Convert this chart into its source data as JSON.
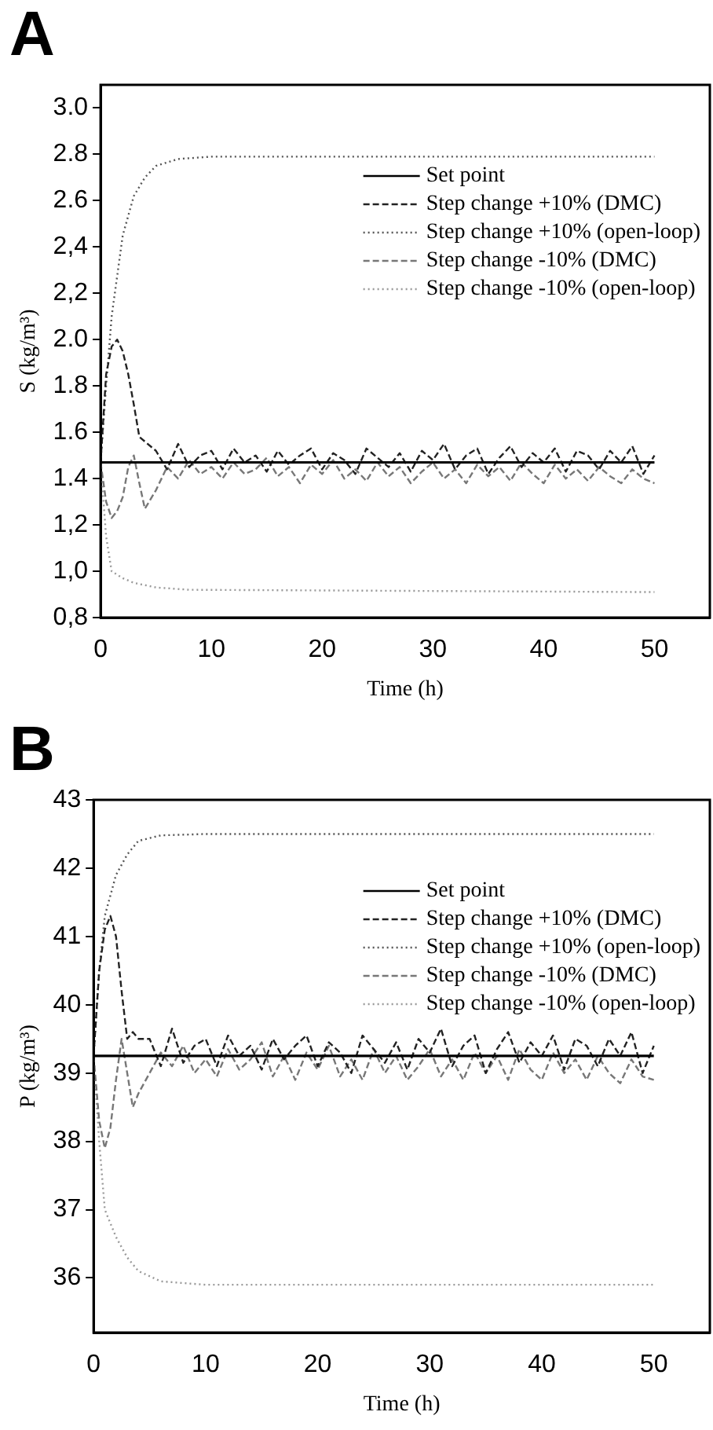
{
  "chart_data": [
    {
      "type": "line",
      "title": "A",
      "xlabel": "Time (h)",
      "ylabel": "S (kg/m³)",
      "xlim": [
        0,
        55
      ],
      "xticks": [
        0,
        10,
        20,
        30,
        40,
        50
      ],
      "ylim": [
        0.8,
        3.1
      ],
      "yticks": [
        {
          "value": 0.8,
          "label": "0,8"
        },
        {
          "value": 1.0,
          "label": "1,0"
        },
        {
          "value": 1.2,
          "label": "1,2"
        },
        {
          "value": 1.4,
          "label": "1.4"
        },
        {
          "value": 1.6,
          "label": "1.6"
        },
        {
          "value": 1.8,
          "label": "1.8"
        },
        {
          "value": 2.0,
          "label": "2.0"
        },
        {
          "value": 2.2,
          "label": "2,2"
        },
        {
          "value": 2.4,
          "label": "2,4"
        },
        {
          "value": 2.6,
          "label": "2.6"
        },
        {
          "value": 2.8,
          "label": "2.8"
        },
        {
          "value": 3.0,
          "label": "3.0"
        }
      ],
      "grid": false,
      "legend": "top right",
      "marker": "none",
      "series": [
        {
          "name": "Set point",
          "color": "#000000",
          "line_style": "solid",
          "x": [
            0,
            50
          ],
          "values": [
            1.47,
            1.47
          ]
        },
        {
          "name": "Step change +10% (DMC)",
          "color": "#222222",
          "line_style": "dashed",
          "x": [
            0,
            0.5,
            1,
            1.5,
            2,
            2.5,
            3,
            3.5,
            4,
            5,
            6,
            7,
            8,
            9,
            10,
            11,
            12,
            13,
            14,
            15,
            16,
            17,
            18,
            19,
            20,
            21,
            22,
            23,
            24,
            25,
            26,
            27,
            28,
            29,
            30,
            31,
            32,
            33,
            34,
            35,
            36,
            37,
            38,
            39,
            40,
            41,
            42,
            43,
            44,
            45,
            46,
            47,
            48,
            49,
            50
          ],
          "values": [
            1.47,
            1.85,
            1.97,
            2.0,
            1.95,
            1.85,
            1.72,
            1.58,
            1.56,
            1.52,
            1.44,
            1.55,
            1.45,
            1.5,
            1.52,
            1.44,
            1.53,
            1.47,
            1.5,
            1.43,
            1.52,
            1.46,
            1.5,
            1.53,
            1.44,
            1.51,
            1.48,
            1.42,
            1.53,
            1.49,
            1.45,
            1.51,
            1.43,
            1.52,
            1.48,
            1.55,
            1.44,
            1.5,
            1.53,
            1.42,
            1.49,
            1.54,
            1.45,
            1.51,
            1.47,
            1.53,
            1.43,
            1.52,
            1.5,
            1.44,
            1.52,
            1.47,
            1.54,
            1.42,
            1.5
          ]
        },
        {
          "name": "Step change +10% (open-loop)",
          "color": "#555555",
          "line_style": "dotted",
          "x": [
            0,
            0.5,
            1,
            2,
            3,
            4,
            5,
            7,
            10,
            50
          ],
          "values": [
            1.47,
            1.8,
            2.1,
            2.45,
            2.62,
            2.7,
            2.75,
            2.78,
            2.79,
            2.79
          ]
        },
        {
          "name": "Step change -10% (DMC)",
          "color": "#777777",
          "line_style": "dashed",
          "x": [
            0,
            0.5,
            1,
            1.5,
            2,
            2.5,
            3,
            3.5,
            4,
            5,
            6,
            7,
            8,
            9,
            10,
            11,
            12,
            13,
            14,
            15,
            16,
            17,
            18,
            19,
            20,
            21,
            22,
            23,
            24,
            25,
            26,
            27,
            28,
            29,
            30,
            31,
            32,
            33,
            34,
            35,
            36,
            37,
            38,
            39,
            40,
            41,
            42,
            43,
            44,
            45,
            46,
            47,
            48,
            49,
            50
          ],
          "values": [
            1.47,
            1.3,
            1.23,
            1.26,
            1.32,
            1.45,
            1.5,
            1.38,
            1.27,
            1.35,
            1.45,
            1.4,
            1.48,
            1.42,
            1.45,
            1.4,
            1.47,
            1.42,
            1.44,
            1.49,
            1.41,
            1.45,
            1.38,
            1.46,
            1.42,
            1.48,
            1.4,
            1.44,
            1.39,
            1.47,
            1.41,
            1.45,
            1.38,
            1.43,
            1.47,
            1.4,
            1.44,
            1.38,
            1.46,
            1.41,
            1.45,
            1.39,
            1.47,
            1.42,
            1.38,
            1.46,
            1.4,
            1.44,
            1.39,
            1.45,
            1.41,
            1.38,
            1.44,
            1.4,
            1.38
          ]
        },
        {
          "name": "Step change -10% (open-loop)",
          "color": "#999999",
          "line_style": "dotted",
          "x": [
            0,
            0.5,
            1,
            2,
            3,
            5,
            8,
            50
          ],
          "values": [
            1.47,
            1.15,
            1.0,
            0.97,
            0.95,
            0.93,
            0.92,
            0.91
          ]
        }
      ]
    },
    {
      "type": "line",
      "title": "B",
      "xlabel": "Time (h)",
      "ylabel": "P (kg/m³)",
      "xlim": [
        0,
        55
      ],
      "xticks": [
        0,
        10,
        20,
        30,
        40,
        50
      ],
      "ylim": [
        35.2,
        43
      ],
      "yticks": [
        36,
        37,
        38,
        39,
        40,
        41,
        42,
        43
      ],
      "grid": false,
      "legend": "top right",
      "marker": "none",
      "series": [
        {
          "name": "Set point",
          "color": "#000000",
          "line_style": "solid",
          "x": [
            0,
            50
          ],
          "values": [
            39.25,
            39.25
          ]
        },
        {
          "name": "Step change +10% (DMC)",
          "color": "#222222",
          "line_style": "dashed",
          "x": [
            0,
            0.5,
            1,
            1.5,
            2,
            2.5,
            3,
            3.5,
            4,
            5,
            6,
            7,
            8,
            9,
            10,
            11,
            12,
            13,
            14,
            15,
            16,
            17,
            18,
            19,
            20,
            21,
            22,
            23,
            24,
            25,
            26,
            27,
            28,
            29,
            30,
            31,
            32,
            33,
            34,
            35,
            36,
            37,
            38,
            39,
            40,
            41,
            42,
            43,
            44,
            45,
            46,
            47,
            48,
            49,
            50
          ],
          "values": [
            39.25,
            40.5,
            41.1,
            41.3,
            41.0,
            40.2,
            39.5,
            39.6,
            39.5,
            39.5,
            39.1,
            39.65,
            39.15,
            39.4,
            39.5,
            39.1,
            39.55,
            39.25,
            39.4,
            39.05,
            39.5,
            39.2,
            39.4,
            39.55,
            39.1,
            39.45,
            39.3,
            39.0,
            39.55,
            39.35,
            39.15,
            39.45,
            39.05,
            39.5,
            39.3,
            39.65,
            39.1,
            39.4,
            39.55,
            39.0,
            39.35,
            39.6,
            39.15,
            39.45,
            39.25,
            39.55,
            39.05,
            39.5,
            39.4,
            39.1,
            39.5,
            39.25,
            39.6,
            39.0,
            39.4
          ]
        },
        {
          "name": "Step change +10% (open-loop)",
          "color": "#555555",
          "line_style": "dotted",
          "x": [
            0,
            0.5,
            1,
            2,
            3,
            4,
            6,
            10,
            50
          ],
          "values": [
            39.25,
            40.5,
            41.3,
            41.9,
            42.2,
            42.4,
            42.48,
            42.5,
            42.5
          ]
        },
        {
          "name": "Step change -10% (DMC)",
          "color": "#777777",
          "line_style": "dashed",
          "x": [
            0,
            0.5,
            1,
            1.5,
            2,
            2.5,
            3,
            3.5,
            4,
            5,
            6,
            7,
            8,
            9,
            10,
            11,
            12,
            13,
            14,
            15,
            16,
            17,
            18,
            19,
            20,
            21,
            22,
            23,
            24,
            25,
            26,
            27,
            28,
            29,
            30,
            31,
            32,
            33,
            34,
            35,
            36,
            37,
            38,
            39,
            40,
            41,
            42,
            43,
            44,
            45,
            46,
            47,
            48,
            49,
            50
          ],
          "values": [
            39.25,
            38.3,
            37.9,
            38.2,
            38.9,
            39.5,
            39.0,
            38.5,
            38.7,
            39.0,
            39.3,
            39.1,
            39.4,
            39.0,
            39.2,
            38.95,
            39.35,
            39.05,
            39.2,
            39.45,
            38.95,
            39.25,
            38.9,
            39.3,
            39.05,
            39.4,
            38.95,
            39.2,
            38.9,
            39.35,
            39.0,
            39.25,
            38.9,
            39.1,
            39.35,
            38.95,
            39.2,
            38.9,
            39.3,
            39.0,
            39.25,
            38.9,
            39.35,
            39.05,
            38.9,
            39.3,
            39.0,
            39.2,
            38.9,
            39.25,
            39.0,
            38.85,
            39.2,
            38.95,
            38.9
          ]
        },
        {
          "name": "Step change -10% (open-loop)",
          "color": "#999999",
          "line_style": "dotted",
          "x": [
            0,
            0.5,
            1,
            2,
            3,
            4,
            6,
            10,
            50
          ],
          "values": [
            39.25,
            38.0,
            37.0,
            36.6,
            36.3,
            36.1,
            35.95,
            35.9,
            35.9
          ]
        }
      ]
    }
  ]
}
